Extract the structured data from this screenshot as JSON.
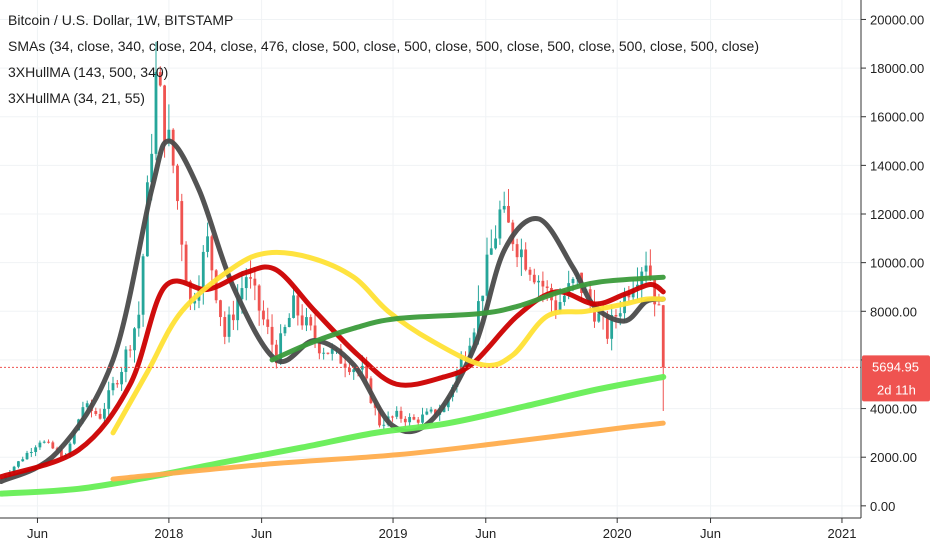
{
  "legend": {
    "title": "Bitcoin / U.S. Dollar, 1W, BITSTAMP",
    "sma": "SMAs (34, close, 340, close, 204, close, 476, close, 500, close, 500, close, 500, close, 500, close, 500, close, 500, close)",
    "hull1": "3XHullMA (143, 500, 340)",
    "hull2": "3XHullMA (34, 21, 55)"
  },
  "price_badge": {
    "value": "5694.95",
    "countdown": "2d 11h",
    "color": "#ef5350"
  },
  "colors": {
    "up": "#26a69a",
    "down": "#ef5350",
    "hull_black": "#4a4a4a",
    "sma_red": "#cc0000",
    "sma_yellow": "#ffe135",
    "sma_darkgreen": "#3b9b3b",
    "sma_lightgreen": "#66ee55",
    "sma_orange": "#ffad4d",
    "grid": "#f0f3f5",
    "axis_line": "#333333"
  },
  "chart_data": {
    "type": "candlestick",
    "title": "Bitcoin / U.S. Dollar, 1W, BITSTAMP",
    "ylim": [
      -500,
      20800
    ],
    "y_ticks": [
      "20000.00",
      "18000.00",
      "16000.00",
      "14000.00",
      "12000.00",
      "10000.00",
      "8000.00",
      "6000.00",
      "4000.00",
      "2000.00",
      "0.00"
    ],
    "y_tick_values": [
      20000,
      18000,
      16000,
      14000,
      12000,
      10000,
      8000,
      6000,
      4000,
      2000,
      0
    ],
    "x_ticks": [
      "Jun",
      "2018",
      "Jun",
      "2019",
      "Jun",
      "2020",
      "Jun",
      "2021"
    ],
    "x_tick_dates": [
      "2017-06",
      "2018-01",
      "2018-06",
      "2019-01",
      "2019-06",
      "2020-01",
      "2020-06",
      "2021-01"
    ],
    "x_range": [
      "2017-04",
      "2021-02"
    ],
    "last_price": 5694.95,
    "price_anchors": [
      [
        "2017-04-03",
        1100
      ],
      [
        "2017-05-01",
        1800
      ],
      [
        "2017-06-05",
        2700
      ],
      [
        "2017-07-17",
        2000
      ],
      [
        "2017-08-14",
        4100
      ],
      [
        "2017-09-11",
        3700
      ],
      [
        "2017-10-16",
        5700
      ],
      [
        "2017-11-13",
        7900
      ],
      [
        "2017-12-11",
        17500
      ],
      [
        "2018-01-08",
        14000
      ],
      [
        "2018-02-05",
        8200
      ],
      [
        "2018-03-05",
        10800
      ],
      [
        "2018-04-02",
        7000
      ],
      [
        "2018-05-07",
        9500
      ],
      [
        "2018-06-25",
        6200
      ],
      [
        "2018-07-23",
        8200
      ],
      [
        "2018-09-03",
        6600
      ],
      [
        "2018-11-12",
        5500
      ],
      [
        "2018-12-10",
        3400
      ],
      [
        "2019-01-07",
        3700
      ],
      [
        "2019-02-04",
        3500
      ],
      [
        "2019-03-25",
        4000
      ],
      [
        "2019-05-13",
        7500
      ],
      [
        "2019-06-24",
        12000
      ],
      [
        "2019-07-29",
        10500
      ],
      [
        "2019-09-23",
        8200
      ],
      [
        "2019-10-28",
        9300
      ],
      [
        "2019-12-16",
        7100
      ],
      [
        "2020-01-27",
        9400
      ],
      [
        "2020-02-17",
        10200
      ],
      [
        "2020-03-09",
        7900
      ],
      [
        "2020-03-16",
        5694.95
      ]
    ],
    "series": [
      {
        "name": "",
        "color": "#4a4a4a",
        "points": [
          [
            "2017-04-03",
            1000
          ],
          [
            "2017-07-03",
            2200
          ],
          [
            "2017-10-02",
            6000
          ],
          [
            "2017-12-04",
            13000
          ],
          [
            "2018-01-01",
            15000
          ],
          [
            "2018-02-19",
            13000
          ],
          [
            "2018-04-16",
            9000
          ],
          [
            "2018-06-25",
            6000
          ],
          [
            "2018-08-27",
            6800
          ],
          [
            "2018-10-29",
            5800
          ],
          [
            "2018-12-31",
            3300
          ],
          [
            "2019-03-04",
            3500
          ],
          [
            "2019-05-13",
            6500
          ],
          [
            "2019-07-01",
            10500
          ],
          [
            "2019-08-26",
            11800
          ],
          [
            "2019-10-21",
            9800
          ],
          [
            "2019-11-25",
            8200
          ],
          [
            "2020-01-13",
            7600
          ],
          [
            "2020-02-17",
            8400
          ],
          [
            "2020-03-16",
            8500
          ]
        ]
      },
      {
        "name": "",
        "color": "#cc0000",
        "points": [
          [
            "2017-04-03",
            1200
          ],
          [
            "2017-08-07",
            2300
          ],
          [
            "2017-10-30",
            5000
          ],
          [
            "2017-12-25",
            9000
          ],
          [
            "2018-03-05",
            8900
          ],
          [
            "2018-05-07",
            9600
          ],
          [
            "2018-06-25",
            9700
          ],
          [
            "2018-08-27",
            8000
          ],
          [
            "2018-11-05",
            6200
          ],
          [
            "2019-01-07",
            5000
          ],
          [
            "2019-03-25",
            5300
          ],
          [
            "2019-05-13",
            5900
          ],
          [
            "2019-07-22",
            7800
          ],
          [
            "2019-09-23",
            8800
          ],
          [
            "2019-11-25",
            8300
          ],
          [
            "2020-01-13",
            8700
          ],
          [
            "2020-02-24",
            9100
          ],
          [
            "2020-03-16",
            8800
          ]
        ]
      },
      {
        "name": "",
        "color": "#ffe135",
        "points": [
          [
            "2017-10-02",
            3000
          ],
          [
            "2017-11-27",
            5500
          ],
          [
            "2018-01-22",
            8000
          ],
          [
            "2018-04-16",
            9800
          ],
          [
            "2018-06-11",
            10400
          ],
          [
            "2018-08-20",
            10200
          ],
          [
            "2018-10-29",
            9400
          ],
          [
            "2018-12-24",
            8000
          ],
          [
            "2019-03-04",
            6800
          ],
          [
            "2019-05-27",
            5800
          ],
          [
            "2019-07-15",
            6200
          ],
          [
            "2019-09-09",
            7800
          ],
          [
            "2019-11-11",
            8000
          ],
          [
            "2020-01-13",
            8300
          ],
          [
            "2020-02-17",
            8500
          ],
          [
            "2020-03-16",
            8500
          ]
        ]
      },
      {
        "name": "",
        "color": "#3b9b3b",
        "points": [
          [
            "2018-06-18",
            6000
          ],
          [
            "2018-08-20",
            6700
          ],
          [
            "2018-10-29",
            7300
          ],
          [
            "2019-01-07",
            7700
          ],
          [
            "2019-05-20",
            7900
          ],
          [
            "2019-07-22",
            8200
          ],
          [
            "2019-09-30",
            8800
          ],
          [
            "2019-12-02",
            9200
          ],
          [
            "2020-03-16",
            9400
          ]
        ]
      },
      {
        "name": "",
        "color": "#66ee55",
        "points": [
          [
            "2017-04-03",
            500
          ],
          [
            "2017-08-07",
            700
          ],
          [
            "2017-12-04",
            1200
          ],
          [
            "2018-04-02",
            1800
          ],
          [
            "2018-08-06",
            2400
          ],
          [
            "2018-12-03",
            3000
          ],
          [
            "2019-04-01",
            3400
          ],
          [
            "2019-08-05",
            4100
          ],
          [
            "2019-12-02",
            4800
          ],
          [
            "2020-03-16",
            5300
          ]
        ]
      },
      {
        "name": "",
        "color": "#ffad4d",
        "points": [
          [
            "2017-10-02",
            1100
          ],
          [
            "2018-06-04",
            1700
          ],
          [
            "2019-01-07",
            2100
          ],
          [
            "2019-07-01",
            2600
          ],
          [
            "2020-01-06",
            3200
          ],
          [
            "2020-03-16",
            3400
          ]
        ]
      }
    ]
  }
}
